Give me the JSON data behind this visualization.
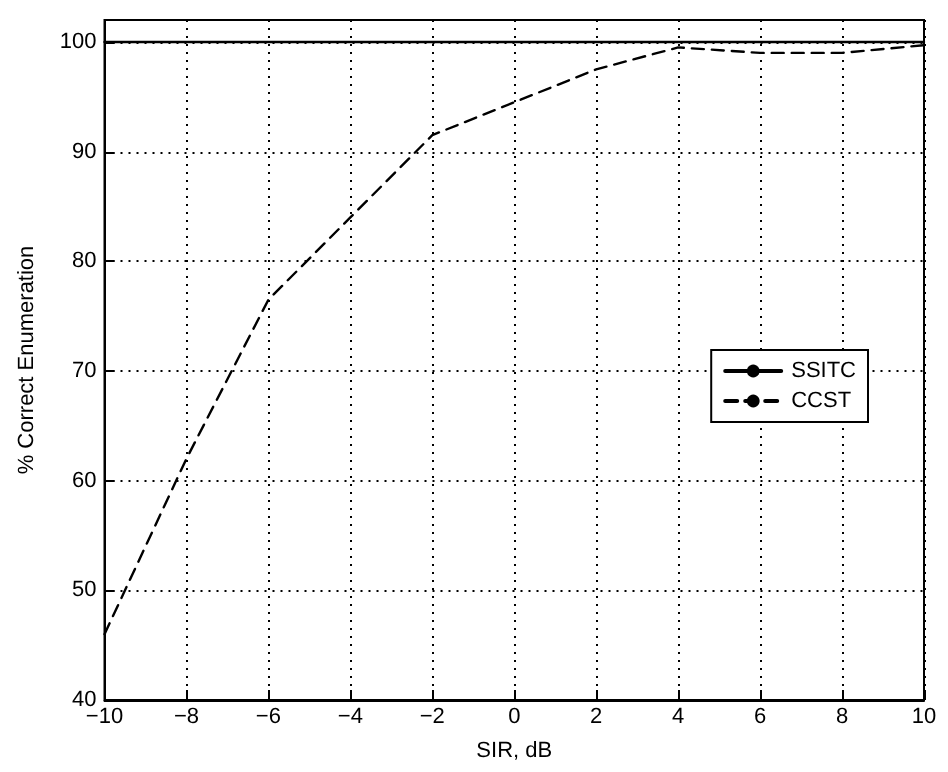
{
  "chart_data": {
    "type": "line",
    "xlabel": "SIR, dB",
    "ylabel": "% Correct Enumeration",
    "x": [
      -10,
      -8,
      -6,
      -4,
      -2,
      0,
      2,
      4,
      6,
      8,
      10
    ],
    "series": [
      {
        "name": "SSITC",
        "color": "#000000",
        "line_style": "solid",
        "values": [
          100,
          100,
          100,
          100,
          100,
          100,
          100,
          100,
          100,
          100,
          100
        ]
      },
      {
        "name": "CCST",
        "color": "#000000",
        "line_style": "dashed",
        "values": [
          46,
          62,
          76.5,
          84,
          91.5,
          94.5,
          97.5,
          99.5,
          99,
          99,
          99.7
        ]
      }
    ],
    "xlim": [
      -10,
      10
    ],
    "xticks": [
      -10,
      -8,
      -6,
      -4,
      -2,
      0,
      2,
      4,
      6,
      8,
      10
    ],
    "ylim": [
      40,
      102
    ],
    "yticks": [
      40,
      50,
      60,
      70,
      80,
      90,
      100
    ],
    "grid": true,
    "legend": "right",
    "marker": "none"
  }
}
